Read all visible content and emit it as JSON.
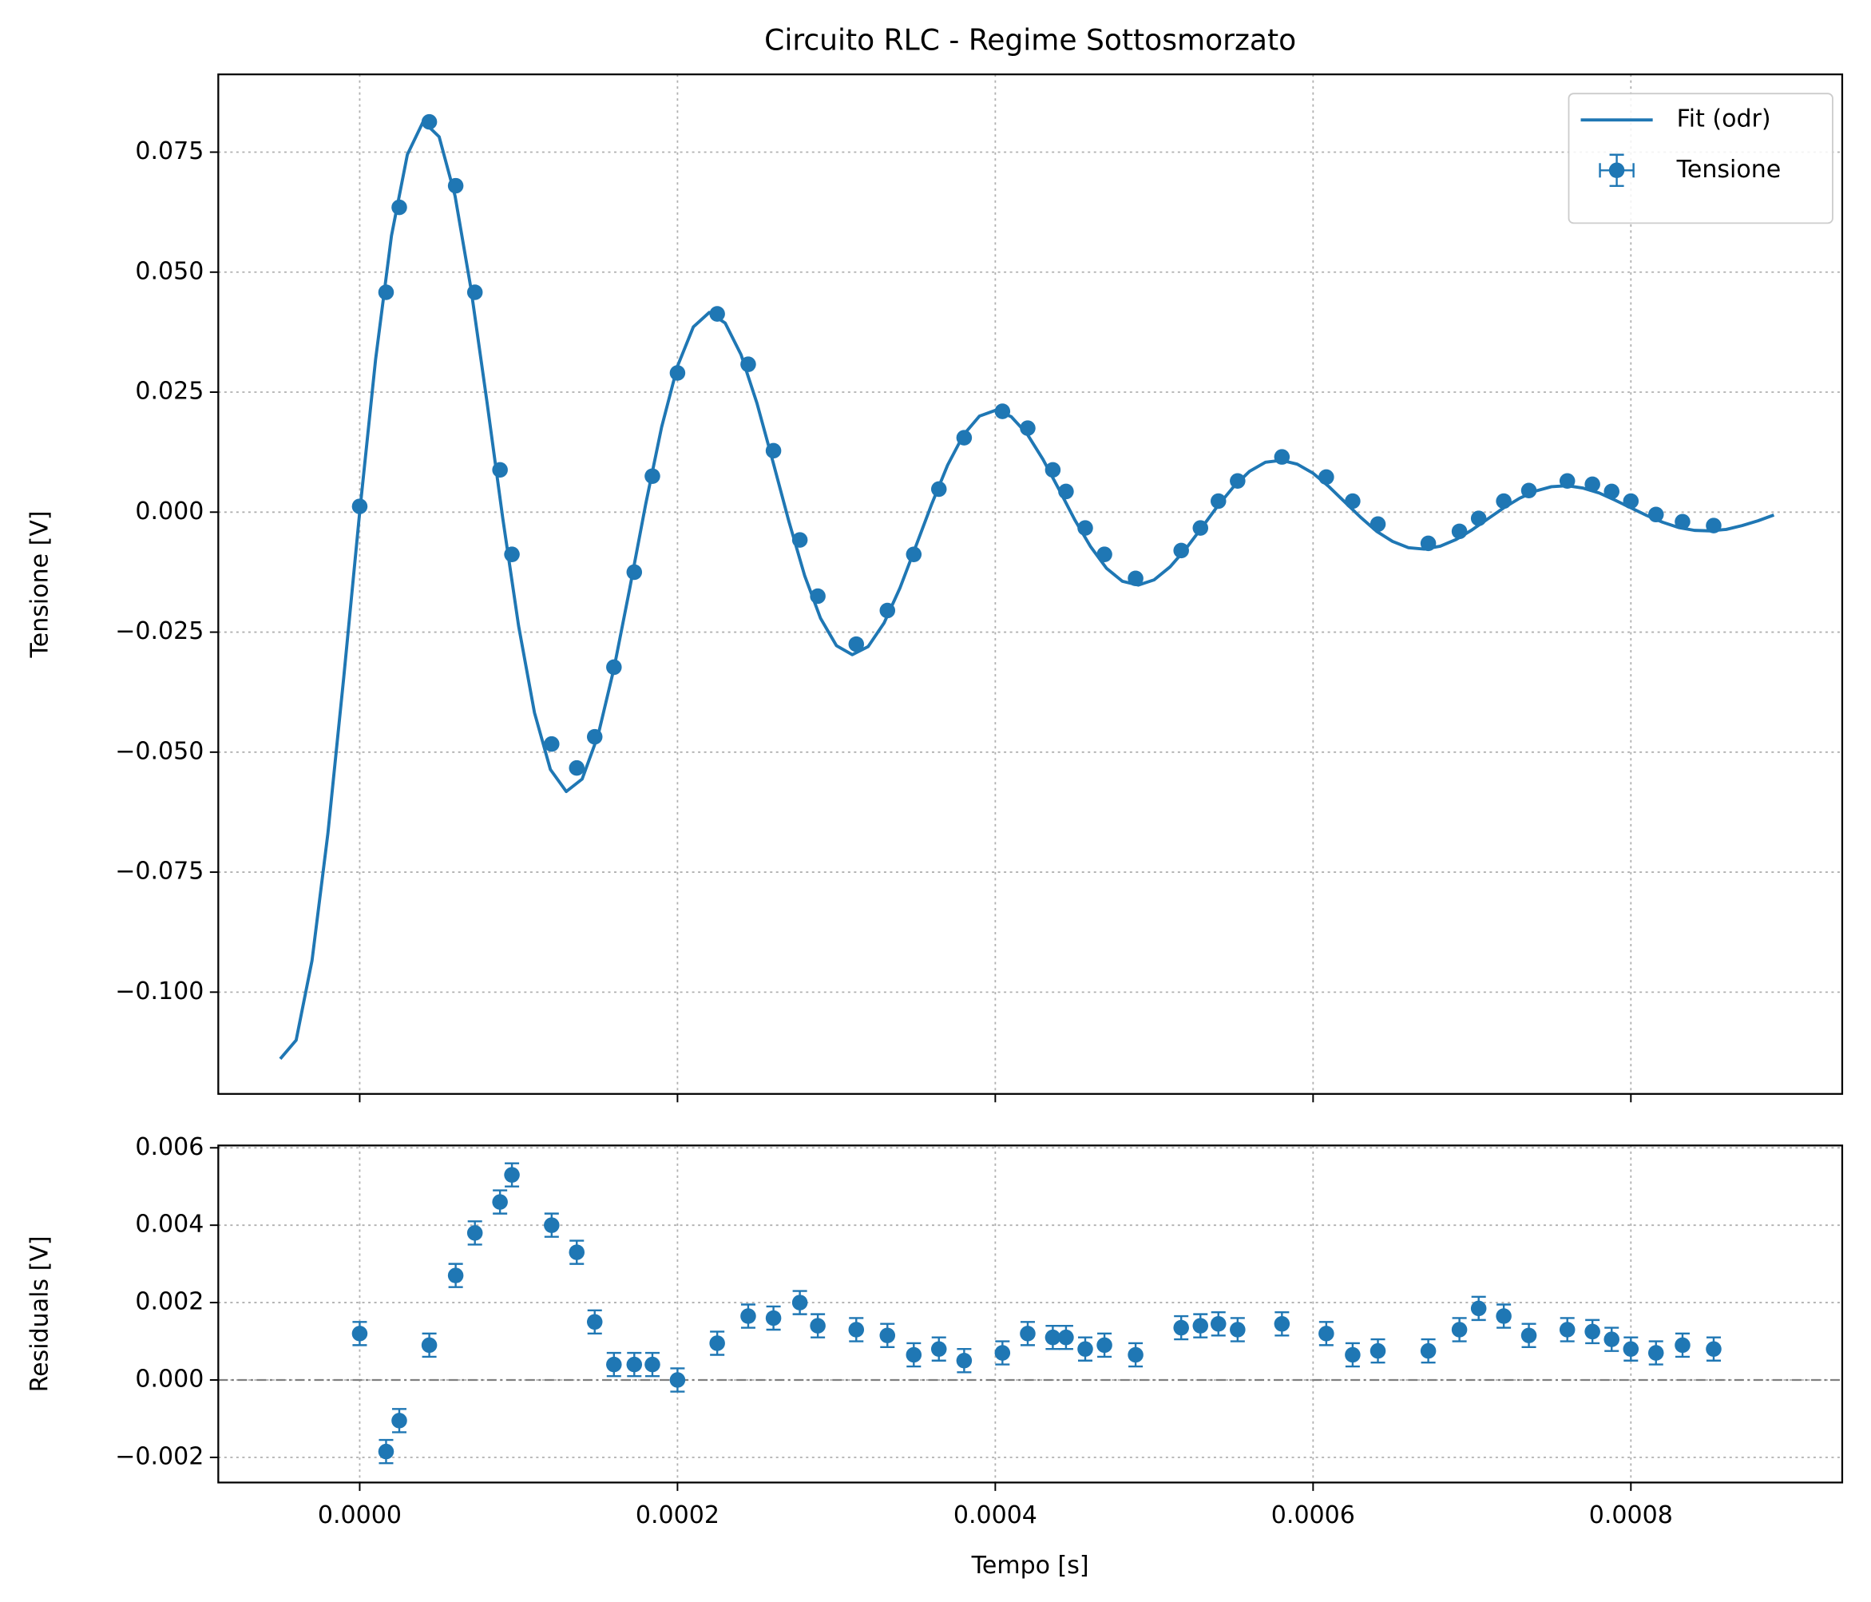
{
  "chart_data": [
    {
      "type": "errorbar",
      "title": "Circuito RLC - Regime Sottosmorzato",
      "ylabel": "Tensione [V]",
      "xlim": [
        -8.9e-05,
        0.000933
      ],
      "ylim": [
        -0.1212,
        0.0912
      ],
      "xticks": [
        0,
        0.0002,
        0.0004,
        0.0006,
        0.0008
      ],
      "sharex": true,
      "yticks": [
        {
          "value": -0.1,
          "label": "−0.100"
        },
        {
          "value": -0.075,
          "label": "−0.075"
        },
        {
          "value": -0.05,
          "label": "−0.050"
        },
        {
          "value": -0.025,
          "label": "−0.025"
        },
        {
          "value": 0,
          "label": "0.000"
        },
        {
          "value": 0.025,
          "label": "0.025"
        },
        {
          "value": 0.05,
          "label": "0.050"
        },
        {
          "value": 0.075,
          "label": "0.075"
        }
      ],
      "grid": true,
      "legend": "upper right",
      "series": [
        {
          "name": "Fit (odr)",
          "kind": "line",
          "color": "#1f77b4",
          "x": [
            -5e-05,
            -4e-05,
            -3e-05,
            -2e-05,
            -1e-05,
            0,
            1e-05,
            2e-05,
            3e-05,
            4e-05,
            5e-05,
            6e-05,
            7e-05,
            8e-05,
            9e-05,
            0.0001,
            0.00011,
            0.00012,
            0.00013,
            0.00014,
            0.00015,
            0.00016,
            0.00017,
            0.00018,
            0.00019,
            0.0002,
            0.00021,
            0.00022,
            0.00023,
            0.00024,
            0.00025,
            0.00026,
            0.00027,
            0.00028,
            0.00029,
            0.0003,
            0.00031,
            0.00032,
            0.00033,
            0.00034,
            0.00035,
            0.00036,
            0.00037,
            0.00038,
            0.00039,
            0.0004,
            0.00041,
            0.00042,
            0.00043,
            0.00044,
            0.00045,
            0.00046,
            0.00047,
            0.00048,
            0.00049,
            0.0005,
            0.00051,
            0.00052,
            0.00053,
            0.00054,
            0.00055,
            0.00056,
            0.00057,
            0.00058,
            0.00059,
            0.0006,
            0.00061,
            0.00062,
            0.00063,
            0.00064,
            0.00065,
            0.00066,
            0.00067,
            0.00068,
            0.00069,
            0.0007,
            0.00071,
            0.00072,
            0.00073,
            0.00074,
            0.00075,
            0.00076,
            0.00077,
            0.00078,
            0.00079,
            0.0008,
            0.00081,
            0.00082,
            0.00083,
            0.00084,
            0.00085,
            0.00086,
            0.00087,
            0.00088,
            0.00089
          ],
          "values": [
            -0.1139,
            -0.11,
            -0.0934,
            -0.0669,
            -0.0343,
            0,
            0.0318,
            0.0576,
            0.0745,
            0.0814,
            0.0782,
            0.0659,
            0.0466,
            0.0232,
            -0.0012,
            -0.0237,
            -0.0418,
            -0.0536,
            -0.0582,
            -0.0556,
            -0.0465,
            -0.0326,
            -0.0158,
            0.0017,
            0.0177,
            0.0304,
            0.0386,
            0.0416,
            0.0394,
            0.0328,
            0.0227,
            0.0106,
            -0.0018,
            -0.0132,
            -0.0221,
            -0.0278,
            -0.0297,
            -0.028,
            -0.0231,
            -0.0158,
            -0.0071,
            0.0017,
            0.0098,
            0.0161,
            0.02,
            0.0212,
            0.0199,
            0.0163,
            0.011,
            0.0048,
            -0.0016,
            -0.0072,
            -0.0117,
            -0.0144,
            -0.0152,
            -0.0141,
            -0.0114,
            -0.0076,
            -0.0032,
            0.0013,
            0.0053,
            0.0085,
            0.0104,
            0.0108,
            0.01,
            0.0081,
            0.0053,
            0.0021,
            -0.0011,
            -0.004,
            -0.0061,
            -0.0074,
            -0.0077,
            -0.0071,
            -0.0057,
            -0.0037,
            -0.0014,
            0.0009,
            0.0029,
            0.0044,
            0.0053,
            0.0055,
            0.005,
            0.004,
            0.0025,
            0.0009,
            -0.0007,
            -0.0021,
            -0.0032,
            -0.0038,
            -0.0039,
            -0.0036,
            -0.0028,
            -0.0018,
            -0.0006
          ]
        },
        {
          "name": "Tensione",
          "kind": "errorbar",
          "color": "#1f77b4",
          "yerr": 0.0003,
          "x": [
            0,
            1.66e-05,
            2.49e-05,
            4.38e-05,
            6.04e-05,
            7.25e-05,
            8.83e-05,
            9.58e-05,
            0.0001208,
            0.0001366,
            0.0001479,
            0.00016,
            0.0001728,
            0.0001842,
            0.0002,
            0.000225,
            0.0002445,
            0.0002604,
            0.000277,
            0.0002883,
            0.0003125,
            0.0003321,
            0.0003487,
            0.0003645,
            0.0003804,
            0.0004045,
            0.0004204,
            0.0004362,
            0.0004445,
            0.0004566,
            0.0004687,
            0.0004883,
            0.000517,
            0.0005291,
            0.0005404,
            0.0005525,
            0.0005804,
            0.0006083,
            0.0006249,
            0.0006408,
            0.0006725,
            0.0006921,
            0.0007042,
            0.00072,
            0.0007358,
            0.00076,
            0.0007758,
            0.0007879,
            0.0008,
            0.0008158,
            0.0008325,
            0.0008521
          ],
          "values": [
            0.0012,
            0.0458,
            0.0635,
            0.0813,
            0.068,
            0.0458,
            0.0088,
            -0.0088,
            -0.0483,
            -0.0533,
            -0.0468,
            -0.0323,
            -0.0125,
            0.0075,
            0.029,
            0.0413,
            0.0308,
            0.0128,
            -0.0058,
            -0.0175,
            -0.0275,
            -0.0205,
            -0.0088,
            0.0048,
            0.0155,
            0.021,
            0.0175,
            0.0088,
            0.0043,
            -0.0033,
            -0.0088,
            -0.0138,
            -0.008,
            -0.0033,
            0.0023,
            0.0065,
            0.0115,
            0.0073,
            0.0023,
            -0.0025,
            -0.0065,
            -0.004,
            -0.0013,
            0.0023,
            0.0045,
            0.0065,
            0.0058,
            0.0043,
            0.0023,
            -0.0005,
            -0.002,
            -0.0028
          ]
        }
      ]
    },
    {
      "type": "errorbar",
      "xlabel": "Tempo [s]",
      "ylabel": "Residuals [V]",
      "xlim": [
        -8.9e-05,
        0.000933
      ],
      "ylim": [
        -0.00265,
        0.00606
      ],
      "xticks": [
        {
          "value": 0,
          "label": "0.0000"
        },
        {
          "value": 0.0002,
          "label": "0.0002"
        },
        {
          "value": 0.0004,
          "label": "0.0004"
        },
        {
          "value": 0.0006,
          "label": "0.0006"
        },
        {
          "value": 0.0008,
          "label": "0.0008"
        }
      ],
      "yticks": [
        {
          "value": -0.002,
          "label": "−0.002"
        },
        {
          "value": 0,
          "label": "0.000"
        },
        {
          "value": 0.002,
          "label": "0.002"
        },
        {
          "value": 0.004,
          "label": "0.004"
        },
        {
          "value": 0.006,
          "label": "0.006"
        }
      ],
      "grid": true,
      "hline": 0,
      "series": [
        {
          "kind": "errorbar",
          "color": "#1f77b4",
          "yerr": 0.0003,
          "x": [
            0,
            1.66e-05,
            2.49e-05,
            4.38e-05,
            6.04e-05,
            7.25e-05,
            8.83e-05,
            9.58e-05,
            0.0001208,
            0.0001366,
            0.0001479,
            0.00016,
            0.0001728,
            0.0001842,
            0.0002,
            0.000225,
            0.0002445,
            0.0002604,
            0.000277,
            0.0002883,
            0.0003125,
            0.0003321,
            0.0003487,
            0.0003645,
            0.0003804,
            0.0004045,
            0.0004204,
            0.0004362,
            0.0004445,
            0.0004566,
            0.0004687,
            0.0004883,
            0.000517,
            0.0005291,
            0.0005404,
            0.0005525,
            0.0005804,
            0.0006083,
            0.0006249,
            0.0006408,
            0.0006725,
            0.0006921,
            0.0007042,
            0.00072,
            0.0007358,
            0.00076,
            0.0007758,
            0.0007879,
            0.0008,
            0.0008158,
            0.0008325,
            0.0008521
          ],
          "values": [
            0.0012,
            -0.00185,
            -0.00105,
            0.0009,
            0.0027,
            0.0038,
            0.0046,
            0.0053,
            0.004,
            0.0033,
            0.0015,
            0.0004,
            0.0004,
            0.0004,
            0,
            0.00095,
            0.00165,
            0.0016,
            0.002,
            0.0014,
            0.0013,
            0.00115,
            0.00065,
            0.0008,
            0.0005,
            0.0007,
            0.0012,
            0.0011,
            0.0011,
            0.0008,
            0.0009,
            0.00065,
            0.00135,
            0.0014,
            0.00145,
            0.0013,
            0.00145,
            0.0012,
            0.00065,
            0.00075,
            0.00075,
            0.0013,
            0.00185,
            0.00165,
            0.00115,
            0.0013,
            0.00125,
            0.00105,
            0.0008,
            0.0007,
            0.0009,
            0.0008
          ]
        }
      ]
    }
  ]
}
